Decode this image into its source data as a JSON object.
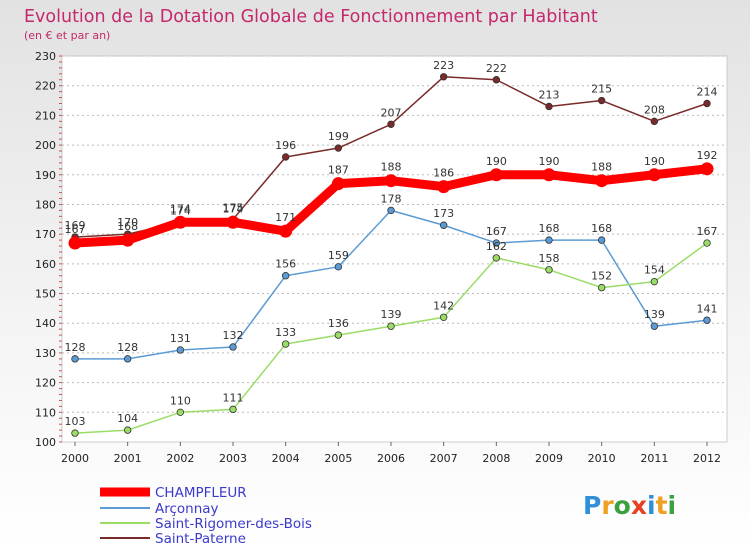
{
  "header": {
    "title": "Evolution de la Dotation Globale de Fonctionnement par Habitant",
    "subtitle": "(en € et par an)"
  },
  "chart_data": {
    "type": "line",
    "title": "Evolution de la Dotation Globale de Fonctionnement par Habitant",
    "subtitle": "(en € et par an)",
    "xlabel": "",
    "ylabel": "",
    "x": [
      "2000",
      "2001",
      "2002",
      "2003",
      "2004",
      "2005",
      "2006",
      "2007",
      "2008",
      "2009",
      "2010",
      "2011",
      "2012"
    ],
    "ylim": [
      100,
      230
    ],
    "yticks": [
      100,
      110,
      120,
      130,
      140,
      150,
      160,
      170,
      180,
      190,
      200,
      210,
      220,
      230
    ],
    "grid": "horizontal dotted",
    "legend_position": "bottom-left",
    "series": [
      {
        "name": "CHAMPFLEUR",
        "color": "#ff0000",
        "emphasis": true,
        "values": [
          167,
          168,
          174,
          174,
          171,
          187,
          188,
          186,
          190,
          190,
          188,
          190,
          192
        ]
      },
      {
        "name": "Arçonnay",
        "color": "#5b9bd5",
        "values": [
          128,
          128,
          131,
          132,
          156,
          159,
          178,
          173,
          167,
          168,
          168,
          139,
          141
        ]
      },
      {
        "name": "Saint-Rigomer-des-Bois",
        "color": "#99dd66",
        "values": [
          103,
          104,
          110,
          111,
          133,
          136,
          139,
          142,
          162,
          158,
          152,
          154,
          167
        ]
      },
      {
        "name": "Saint-Paterne",
        "color": "#7a2a2a",
        "values": [
          169,
          170,
          174,
          175,
          196,
          199,
          207,
          223,
          222,
          213,
          215,
          208,
          214
        ]
      }
    ]
  },
  "logo": {
    "letters": [
      "P",
      "r",
      "o",
      "x",
      "i",
      "t",
      "i"
    ],
    "colors": [
      "#2f8fd8",
      "#f0a020",
      "#3aa040",
      "#e84020",
      "#2f8fd8",
      "#f0a020",
      "#3aa040"
    ]
  }
}
